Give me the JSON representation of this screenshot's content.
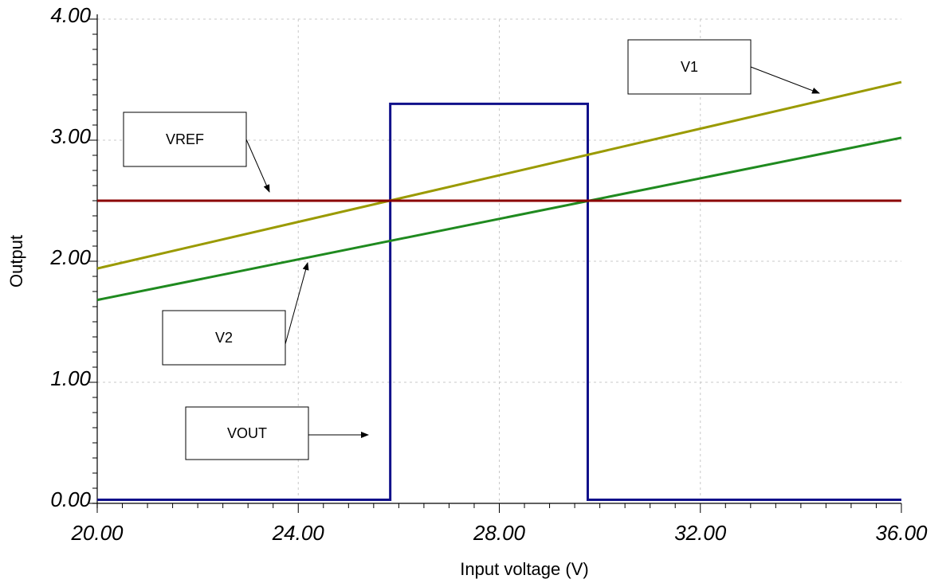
{
  "chart_data": {
    "type": "line",
    "xlabel": "Input voltage (V)",
    "ylabel": "Output",
    "xlim": [
      20,
      36
    ],
    "ylim": [
      0,
      4
    ],
    "x_ticks": [
      "20.00",
      "24.00",
      "28.00",
      "32.00",
      "36.00"
    ],
    "y_ticks": [
      "0.00",
      "1.00",
      "2.00",
      "3.00",
      "4.00"
    ],
    "grid": true,
    "series": [
      {
        "name": "V1",
        "color": "#9a9a00",
        "x": [
          20,
          36
        ],
        "y": [
          1.94,
          3.48
        ]
      },
      {
        "name": "V2",
        "color": "#1f8a1f",
        "x": [
          20,
          36
        ],
        "y": [
          1.68,
          3.02
        ]
      },
      {
        "name": "VREF",
        "color": "#8b0000",
        "x": [
          20,
          36
        ],
        "y": [
          2.5,
          2.5
        ]
      },
      {
        "name": "VOUT",
        "color": "#10108a",
        "x": [
          20,
          25.83,
          25.83,
          29.76,
          29.76,
          36
        ],
        "y": [
          0.03,
          0.03,
          3.3,
          3.3,
          0.03,
          0.03
        ]
      }
    ],
    "annotations": [
      {
        "label": "V1"
      },
      {
        "label": "VREF"
      },
      {
        "label": "V2"
      },
      {
        "label": "VOUT"
      }
    ]
  }
}
